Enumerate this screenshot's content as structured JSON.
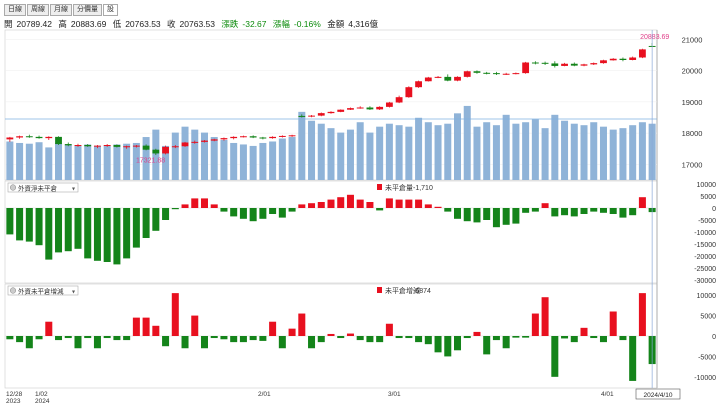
{
  "toolbar": {
    "tabs": [
      "日線",
      "周線",
      "月線",
      "分價量",
      "設"
    ]
  },
  "info": {
    "open_label": "開",
    "open": "20789.42",
    "high_label": "高",
    "high": "20883.69",
    "low_label": "低",
    "low": "20763.53",
    "close_label": "收",
    "close": "20763.53",
    "change_label": "漲跌",
    "change": "-32.67",
    "pct_label": "漲幅",
    "pct": "-0.16%",
    "amount_label": "金額",
    "amount": "4,316億"
  },
  "colors": {
    "up": "#e8101f",
    "down": "#14841a",
    "volume": "#8fb3d8",
    "hline": "#7fb0e0",
    "cursor": "#8aa8d8"
  },
  "chart_data": [
    {
      "type": "candlestick",
      "y_ticks": [
        "21000",
        "20000",
        "19000",
        "18000",
        "17000"
      ],
      "ylim": [
        16500,
        21300
      ],
      "max_label": "20883.69",
      "min_label": "17321.88",
      "x_ticks": [
        "12/28",
        "1/02",
        "2/01",
        "3/01",
        "4/01",
        "2024/4/10"
      ],
      "x_ticks_sub": [
        "2023",
        "2024",
        "",
        "",
        "",
        ""
      ],
      "ohlc": [
        [
          17800,
          17880,
          17720,
          17860
        ],
        [
          17860,
          17920,
          17820,
          17900
        ],
        [
          17900,
          17950,
          17850,
          17880
        ],
        [
          17880,
          17920,
          17820,
          17840
        ],
        [
          17840,
          17900,
          17780,
          17880
        ],
        [
          17880,
          17900,
          17620,
          17650
        ],
        [
          17650,
          17700,
          17580,
          17610
        ],
        [
          17610,
          17660,
          17560,
          17620
        ],
        [
          17620,
          17650,
          17560,
          17580
        ],
        [
          17580,
          17620,
          17520,
          17600
        ],
        [
          17600,
          17650,
          17560,
          17620
        ],
        [
          17620,
          17640,
          17540,
          17560
        ],
        [
          17560,
          17600,
          17500,
          17580
        ],
        [
          17580,
          17620,
          17540,
          17600
        ],
        [
          17600,
          17640,
          17450,
          17470
        ],
        [
          17470,
          17500,
          17300,
          17350
        ],
        [
          17350,
          17600,
          17320,
          17560
        ],
        [
          17560,
          17620,
          17520,
          17580
        ],
        [
          17580,
          17720,
          17560,
          17700
        ],
        [
          17700,
          17760,
          17660,
          17720
        ],
        [
          17720,
          17780,
          17700,
          17760
        ],
        [
          17760,
          17820,
          17740,
          17800
        ],
        [
          17800,
          17860,
          17760,
          17840
        ],
        [
          17840,
          17900,
          17800,
          17880
        ],
        [
          17880,
          17920,
          17860,
          17900
        ],
        [
          17900,
          17930,
          17840,
          17860
        ],
        [
          17860,
          17880,
          17800,
          17840
        ],
        [
          17840,
          17900,
          17820,
          17880
        ],
        [
          17880,
          17930,
          17860,
          17910
        ],
        [
          17910,
          17950,
          17880,
          17930
        ],
        [
          18550,
          18600,
          18500,
          18540
        ],
        [
          18540,
          18580,
          18510,
          18560
        ],
        [
          18560,
          18660,
          18540,
          18640
        ],
        [
          18640,
          18700,
          18620,
          18680
        ],
        [
          18680,
          18760,
          18670,
          18750
        ],
        [
          18750,
          18820,
          18740,
          18800
        ],
        [
          18800,
          18860,
          18780,
          18820
        ],
        [
          18820,
          18860,
          18740,
          18760
        ],
        [
          18760,
          18860,
          18740,
          18840
        ],
        [
          18840,
          19000,
          18820,
          18980
        ],
        [
          18980,
          19200,
          18960,
          19150
        ],
        [
          19150,
          19500,
          19130,
          19470
        ],
        [
          19470,
          19680,
          19450,
          19660
        ],
        [
          19660,
          19800,
          19650,
          19780
        ],
        [
          19780,
          19830,
          19760,
          19800
        ],
        [
          19800,
          19880,
          19660,
          19680
        ],
        [
          19680,
          19820,
          19660,
          19800
        ],
        [
          19800,
          20000,
          19780,
          19980
        ],
        [
          19980,
          20010,
          19900,
          19930
        ],
        [
          19930,
          19960,
          19880,
          19920
        ],
        [
          19920,
          19960,
          19860,
          19890
        ],
        [
          19890,
          19930,
          19860,
          19900
        ],
        [
          19900,
          19940,
          19880,
          19920
        ],
        [
          19920,
          20280,
          19900,
          20260
        ],
        [
          20260,
          20300,
          20200,
          20250
        ],
        [
          20250,
          20290,
          20180,
          20230
        ],
        [
          20230,
          20300,
          20100,
          20150
        ],
        [
          20150,
          20250,
          20140,
          20220
        ],
        [
          20220,
          20260,
          20140,
          20160
        ],
        [
          20160,
          20220,
          20140,
          20200
        ],
        [
          20200,
          20260,
          20180,
          20240
        ],
        [
          20240,
          20350,
          20220,
          20330
        ],
        [
          20330,
          20400,
          20320,
          20380
        ],
        [
          20380,
          20420,
          20300,
          20340
        ],
        [
          20340,
          20450,
          20330,
          20420
        ],
        [
          20420,
          20700,
          20400,
          20680
        ],
        [
          20789.42,
          20883.69,
          20763.53,
          20763.53
        ]
      ],
      "volume_scale_note": "",
      "volume": [
        2600,
        2500,
        2450,
        2550,
        2200,
        2500,
        2400,
        2350,
        2400,
        2300,
        2350,
        2400,
        2450,
        2500,
        2900,
        3400,
        2300,
        3200,
        3600,
        3400,
        3200,
        2900,
        2700,
        2500,
        2400,
        2300,
        2500,
        2600,
        2800,
        2900,
        4600,
        4000,
        3800,
        3500,
        3200,
        3400,
        3900,
        3200,
        3600,
        3800,
        3700,
        3600,
        4200,
        3900,
        3700,
        3800,
        4500,
        5000,
        3600,
        3900,
        3700,
        4400,
        3800,
        3900,
        4100,
        3500,
        4400,
        4000,
        3800,
        3700,
        3900,
        3600,
        3400,
        3500,
        3700,
        3900,
        3800
      ]
    },
    {
      "type": "bar",
      "selector_label": "外資淨未平倉",
      "legend_label": "未平倉量",
      "legend_value": "-1,710",
      "y_ticks": [
        "10000",
        "5000",
        "0",
        "-5000",
        "-10000",
        "-15000",
        "-20000",
        "-25000",
        "-30000"
      ],
      "ylim": [
        -30000,
        10000
      ],
      "values": [
        -11000,
        -13500,
        -14000,
        -15500,
        -21500,
        -18500,
        -18000,
        -17000,
        -21000,
        -22000,
        -22500,
        -23500,
        -21000,
        -16500,
        -12500,
        -9500,
        -5000,
        -500,
        1500,
        4000,
        4000,
        1500,
        -1500,
        -3500,
        -4500,
        -5500,
        -4500,
        -2500,
        -4000,
        -1500,
        1500,
        2000,
        2500,
        3500,
        4500,
        5500,
        3500,
        2500,
        -1000,
        4000,
        3500,
        3500,
        3500,
        1500,
        500,
        -1500,
        -4500,
        -5500,
        -6000,
        -5000,
        -8000,
        -7000,
        -6500,
        -2000,
        -1500,
        2000,
        -3500,
        -3000,
        -3500,
        -2500,
        -1500,
        -2000,
        -2500,
        -4000,
        -3000,
        4500,
        -1710
      ]
    },
    {
      "type": "bar",
      "selector_label": "外資未平倉增減",
      "legend_label": "未平倉增減",
      "legend_value": "-6874",
      "y_ticks": [
        "10000",
        "5000",
        "0",
        "-5000",
        "-10000"
      ],
      "ylim": [
        -12000,
        12000
      ],
      "values": [
        -800,
        -1500,
        -3000,
        -800,
        3500,
        -1000,
        -500,
        -3000,
        -500,
        -3000,
        -500,
        -1000,
        -1000,
        4500,
        4500,
        2500,
        -2500,
        10500,
        -3000,
        5000,
        -3000,
        -500,
        -800,
        -1500,
        -1500,
        -1000,
        -1200,
        3500,
        -3000,
        1800,
        5500,
        -3000,
        -1500,
        500,
        -500,
        600,
        -1000,
        -1500,
        -1500,
        3000,
        -500,
        -500,
        -1500,
        -2000,
        -4000,
        -5000,
        -3500,
        -500,
        1000,
        -4500,
        -1000,
        -3000,
        -400,
        -400,
        5500,
        9500,
        -10000,
        -600,
        -1500,
        2000,
        -500,
        -1500,
        6000,
        -1000,
        -11000,
        10500,
        -6874
      ]
    }
  ]
}
